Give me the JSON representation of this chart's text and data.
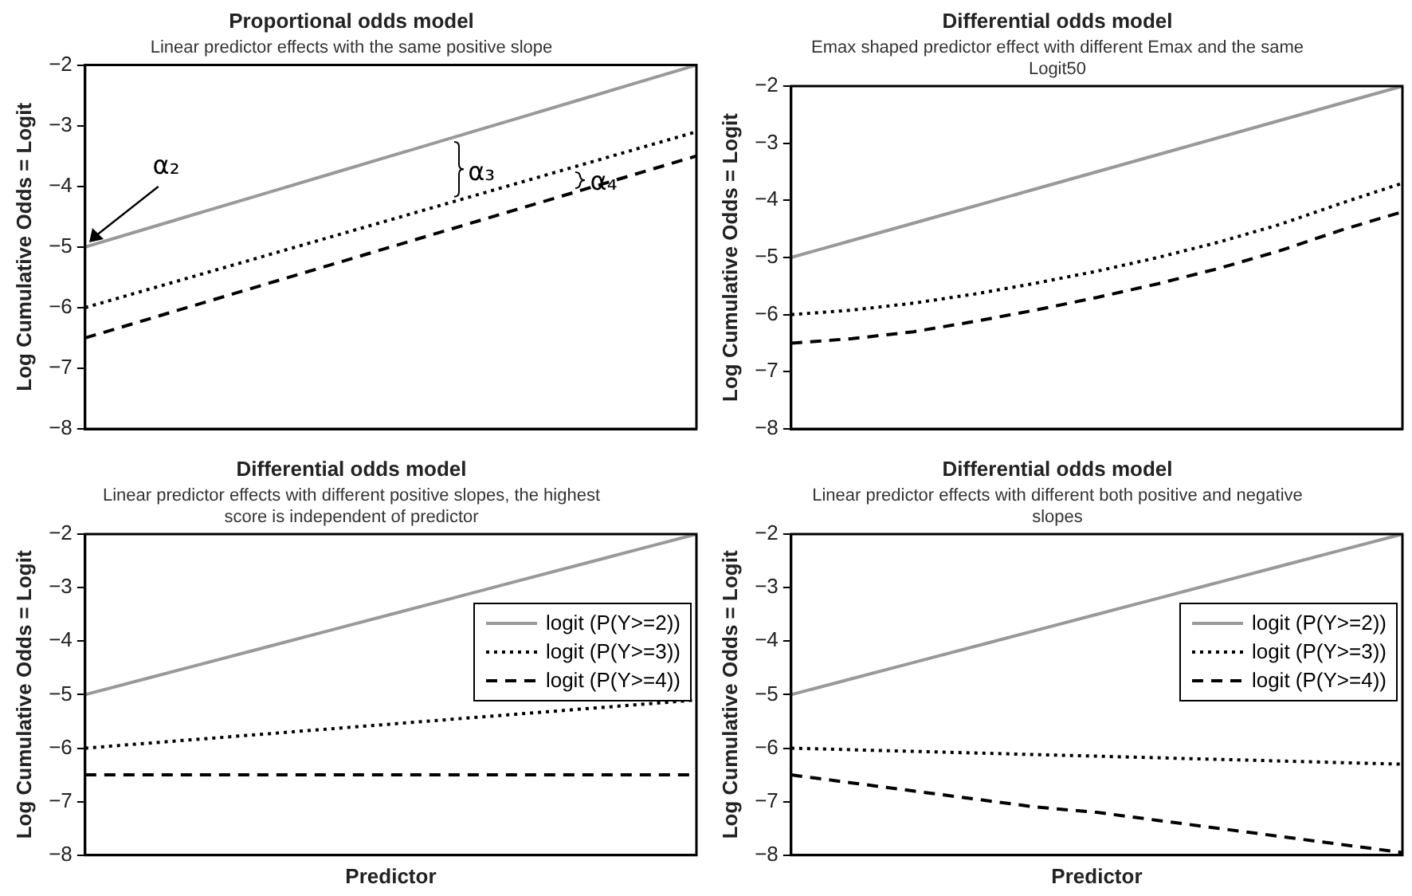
{
  "chart_data": [
    {
      "type": "line",
      "title": "Proportional odds model",
      "subtitle": "Linear predictor effects with the same positive slope",
      "ylabel": "Log Cumulative Odds = Logit",
      "categories": [
        null,
        null,
        null,
        null,
        null,
        null,
        null,
        null,
        null,
        null,
        null
      ],
      "ylim": [
        -8,
        -2
      ],
      "yticks": [
        -8,
        -7,
        -6,
        -5,
        -4,
        -3,
        -2
      ],
      "tick_labels": "y",
      "marker": "none",
      "annotations": [
        "α₂",
        "α₃",
        "α₄"
      ],
      "series": [
        {
          "color": "#999999",
          "line_style": "solid",
          "values": [
            -5,
            -4.7,
            -4.4,
            -4.1,
            -3.8,
            -3.5,
            -3.2,
            -2.9,
            -2.6,
            -2.3,
            -2
          ]
        },
        {
          "color": "#000000",
          "line_style": "dotted",
          "values": [
            -6,
            -5.71,
            -5.42,
            -5.13,
            -4.84,
            -4.55,
            -4.26,
            -3.97,
            -3.68,
            -3.39,
            -3.1
          ]
        },
        {
          "color": "#000000",
          "line_style": "dashed",
          "values": [
            -6.5,
            -6.2,
            -5.9,
            -5.6,
            -5.3,
            -5,
            -4.7,
            -4.4,
            -4.1,
            -3.8,
            -3.5
          ]
        }
      ]
    },
    {
      "type": "line",
      "title": "Differential odds model",
      "subtitle": "Emax shaped predictor effect with different Emax and the same Logit50",
      "ylabel": "Log Cumulative Odds = Logit",
      "categories": [
        null,
        null,
        null,
        null,
        null,
        null,
        null,
        null,
        null,
        null,
        null
      ],
      "ylim": [
        -8,
        -2
      ],
      "yticks": [
        -8,
        -7,
        -6,
        -5,
        -4,
        -3,
        -2
      ],
      "tick_labels": "y",
      "marker": "none",
      "series": [
        {
          "color": "#999999",
          "line_style": "solid",
          "values": [
            -5,
            -4.7,
            -4.4,
            -4.1,
            -3.8,
            -3.5,
            -3.2,
            -2.9,
            -2.6,
            -2.3,
            -2
          ]
        },
        {
          "color": "#000000",
          "line_style": "dotted",
          "values": [
            -6,
            -5.92,
            -5.8,
            -5.64,
            -5.45,
            -5.24,
            -5,
            -4.73,
            -4.42,
            -4.05,
            -3.7
          ]
        },
        {
          "color": "#000000",
          "line_style": "dashed",
          "values": [
            -6.5,
            -6.42,
            -6.3,
            -6.12,
            -5.92,
            -5.7,
            -5.46,
            -5.19,
            -4.88,
            -4.52,
            -4.2
          ]
        }
      ]
    },
    {
      "type": "line",
      "title": "Differential odds model",
      "subtitle": "Linear predictor effects with different positive slopes, the highest score is independent of predictor",
      "xlabel": "Predictor",
      "ylabel": "Log Cumulative Odds = Logit",
      "categories": [
        null,
        null,
        null,
        null,
        null,
        null,
        null,
        null,
        null,
        null,
        null
      ],
      "ylim": [
        -8,
        -2
      ],
      "yticks": [
        -8,
        -7,
        -6,
        -5,
        -4,
        -3,
        -2
      ],
      "tick_labels": "y",
      "marker": "none",
      "legend": "right",
      "series": [
        {
          "name": "logit (P(Y>=2))",
          "color": "#999999",
          "line_style": "solid",
          "values": [
            -5,
            -4.7,
            -4.4,
            -4.1,
            -3.8,
            -3.5,
            -3.2,
            -2.9,
            -2.6,
            -2.3,
            -2
          ]
        },
        {
          "name": "logit (P(Y>=3))",
          "color": "#000000",
          "line_style": "dotted",
          "values": [
            -6,
            -5.91,
            -5.82,
            -5.73,
            -5.64,
            -5.55,
            -5.46,
            -5.37,
            -5.28,
            -5.19,
            -5.1
          ]
        },
        {
          "name": "logit (P(Y>=4))",
          "color": "#000000",
          "line_style": "dashed",
          "values": [
            -6.5,
            -6.5,
            -6.5,
            -6.5,
            -6.5,
            -6.5,
            -6.5,
            -6.5,
            -6.5,
            -6.5,
            -6.5
          ]
        }
      ]
    },
    {
      "type": "line",
      "title": "Differential odds model",
      "subtitle": "Linear predictor effects with different both positive and negative slopes",
      "xlabel": "Predictor",
      "ylabel": "Log Cumulative Odds = Logit",
      "categories": [
        null,
        null,
        null,
        null,
        null,
        null,
        null,
        null,
        null,
        null,
        null
      ],
      "ylim": [
        -8,
        -2
      ],
      "yticks": [
        -8,
        -7,
        -6,
        -5,
        -4,
        -3,
        -2
      ],
      "tick_labels": "y",
      "marker": "none",
      "legend": "right",
      "series": [
        {
          "name": "logit (P(Y>=2))",
          "color": "#999999",
          "line_style": "solid",
          "values": [
            -5,
            -4.7,
            -4.4,
            -4.1,
            -3.8,
            -3.5,
            -3.2,
            -2.9,
            -2.6,
            -2.3,
            -2
          ]
        },
        {
          "name": "logit (P(Y>=3))",
          "color": "#000000",
          "line_style": "dotted",
          "values": [
            -6,
            -6.03,
            -6.06,
            -6.09,
            -6.12,
            -6.15,
            -6.18,
            -6.21,
            -6.24,
            -6.27,
            -6.3
          ]
        },
        {
          "name": "logit (P(Y>=4))",
          "color": "#000000",
          "line_style": "dashed",
          "values": [
            -6.5,
            -6.65,
            -6.8,
            -6.95,
            -7.1,
            -7.2,
            -7.35,
            -7.5,
            -7.65,
            -7.8,
            -7.95
          ]
        }
      ]
    }
  ]
}
